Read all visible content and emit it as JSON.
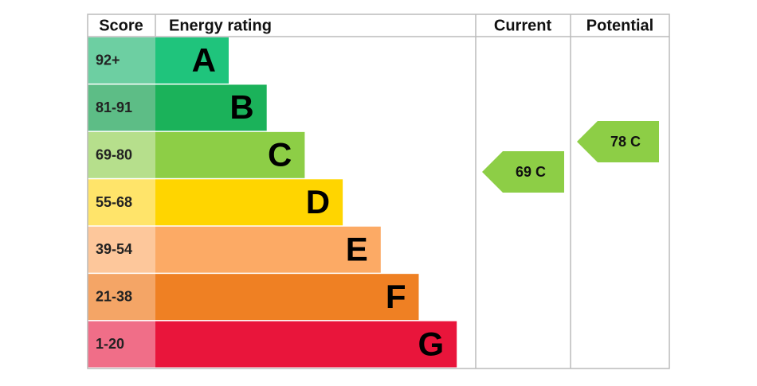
{
  "header": {
    "score": "Score",
    "rating": "Energy rating",
    "current": "Current",
    "potential": "Potential"
  },
  "bands": [
    {
      "score": "92+",
      "letter": "A",
      "color": "#1fc47c",
      "score_color": "#6dcfa2"
    },
    {
      "score": "81-91",
      "letter": "B",
      "color": "#1bb25a",
      "score_color": "#5dbd86"
    },
    {
      "score": "69-80",
      "letter": "C",
      "color": "#8dce46",
      "score_color": "#b6df8c"
    },
    {
      "score": "55-68",
      "letter": "D",
      "color": "#ffd500",
      "score_color": "#ffe46a"
    },
    {
      "score": "39-54",
      "letter": "E",
      "color": "#fcaa65",
      "score_color": "#fdc79b"
    },
    {
      "score": "21-38",
      "letter": "F",
      "color": "#ef8023",
      "score_color": "#f4a566"
    },
    {
      "score": "1-20",
      "letter": "G",
      "color": "#e9153b",
      "score_color": "#f06e88"
    }
  ],
  "current": {
    "label": "69 C",
    "color": "#8dce46"
  },
  "potential": {
    "label": "78 C",
    "color": "#8dce46"
  }
}
